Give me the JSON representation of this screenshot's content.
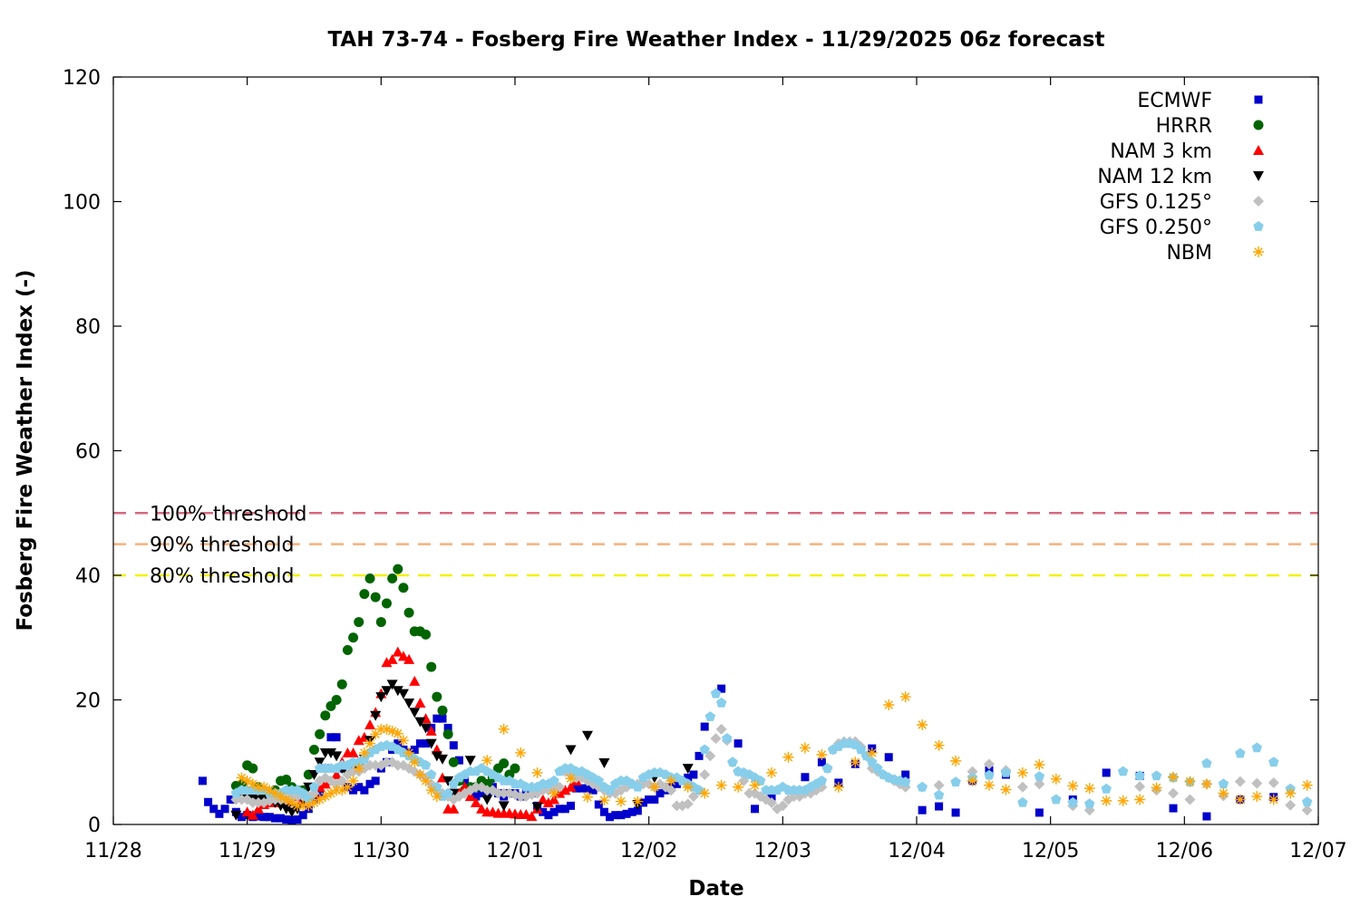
{
  "chart_data": {
    "type": "scatter",
    "title": "TAH 73-74 - Fosberg Fire Weather Index - 11/29/2025 06z forecast",
    "xlabel": "Date",
    "ylabel": "Fosberg Fire Weather Index (-)",
    "x_units": "hours since 11/28 00z",
    "xlim_days": [
      0,
      9
    ],
    "ylim": [
      0,
      120
    ],
    "yticks": [
      0,
      20,
      40,
      60,
      80,
      100,
      120
    ],
    "xtick_labels": [
      "11/28",
      "11/29",
      "11/30",
      "12/01",
      "12/02",
      "12/03",
      "12/04",
      "12/05",
      "12/06",
      "12/07"
    ],
    "grid": false,
    "legend_position": "top-right",
    "thresholds": [
      {
        "label": "100% threshold",
        "value": 50,
        "color": "#d6687f"
      },
      {
        "label": "90% threshold",
        "value": 45,
        "color": "#f5b27c"
      },
      {
        "label": "80% threshold",
        "value": 40,
        "color": "#f2f200"
      }
    ],
    "series": [
      {
        "name": "ECMWF",
        "marker": "square",
        "color": "#0000cc",
        "segments": [
          {
            "start_hour": 16,
            "step_hours": 1,
            "values": [
              7,
              3.6,
              2.5,
              1.7,
              2.5,
              4,
              2,
              1.2,
              1.5,
              1.2,
              1.3,
              1.2,
              1.2,
              1,
              1,
              0.8,
              0.7,
              0.8,
              1.5,
              2.5,
              4,
              5,
              9,
              14,
              14,
              9,
              6,
              5.5,
              6,
              5.5,
              6.5,
              7,
              9,
              10,
              12,
              13,
              12,
              11.5,
              12,
              13,
              13,
              15.5,
              17,
              17,
              15.5,
              12.7
            ]
          },
          {
            "start_hour": 62,
            "step_hours": 1,
            "values": [
              10.3,
              7,
              5.5,
              4.5,
              5,
              5,
              6,
              5,
              4.5,
              5,
              5,
              4.5,
              5.5,
              5,
              3,
              2,
              1.5,
              2,
              2.5,
              2.5,
              3,
              5.8,
              5.8,
              5.8,
              5.5,
              3.2,
              2,
              1.2,
              1.5,
              1.5,
              1.7,
              2,
              2.2,
              3.5,
              4,
              4,
              5,
              5.5,
              6,
              6.5,
              7,
              7.5,
              8,
              11,
              15.7
            ]
          },
          {
            "start_hour": 109,
            "step_hours": 3,
            "values": [
              21.8,
              13,
              2.5,
              4.5,
              null,
              7.6,
              10,
              6.7,
              9.7,
              12.2,
              10.8,
              8,
              2.3,
              2.9,
              1.9,
              7,
              8.7,
              8,
              null,
              1.9,
              null,
              4,
              null,
              8.3,
              null,
              7.8,
              null,
              2.6,
              null,
              1.3,
              null,
              4,
              null,
              4.4
            ]
          }
        ]
      },
      {
        "name": "HRRR",
        "marker": "circle",
        "color": "#006400",
        "segments": [
          {
            "start_hour": 22,
            "step_hours": 1,
            "values": [
              6.2,
              6.5,
              9.5,
              9,
              6,
              5,
              5,
              5.5,
              7,
              7.2,
              6,
              5.5,
              5.5,
              8,
              12,
              14.5,
              17.5,
              19,
              20,
              22.5,
              28,
              30,
              32.5,
              37,
              39.5,
              36.5,
              32.5,
              35.5,
              39.5,
              41,
              38,
              34,
              31,
              31,
              30.5,
              25.3,
              20.5,
              18.3,
              14.5,
              10,
              7,
              5.5,
              6,
              6,
              7,
              6.5,
              7.5,
              9,
              9.8,
              8,
              9
            ]
          }
        ]
      },
      {
        "name": "NAM 3 km",
        "marker": "triangle-up",
        "color": "#ff0000",
        "segments": [
          {
            "start_hour": 24,
            "step_hours": 1,
            "values": [
              2,
              1.5,
              2.5,
              3.2,
              3.5,
              3.5,
              4,
              4,
              4.5,
              4.5,
              4,
              4.5,
              5,
              6,
              6.5,
              7,
              8,
              10,
              11.5,
              11.5,
              13.5,
              14,
              16,
              18,
              21,
              26,
              26.5,
              27.7,
              27,
              26.5,
              23,
              19.5,
              17,
              15,
              12,
              7.5,
              2.5,
              2.5,
              5,
              6,
              4.5,
              3.5,
              2.5,
              2,
              2,
              1.8,
              1.8,
              1.8,
              1.7,
              1.6,
              1.6,
              1.3,
              2.5,
              4,
              3.5,
              4,
              5,
              5.5,
              6,
              7,
              8.5
            ]
          }
        ]
      },
      {
        "name": "NAM 12 km",
        "marker": "triangle-down",
        "color": "#000000",
        "segments": [
          {
            "start_hour": 22,
            "step_hours": 1,
            "values": [
              1.5,
              4.5,
              4.5,
              4.5,
              4,
              4,
              4,
              3.5,
              3,
              2.5,
              2,
              2.5,
              4,
              6,
              8,
              10,
              11.5,
              11.5,
              11,
              9,
              8,
              8.5,
              9,
              10.5,
              13.5,
              17.5,
              20.5,
              21.5,
              22.5,
              21.5,
              21,
              19.5,
              18,
              16.5,
              15.5,
              13,
              11,
              10.5,
              7,
              5
            ]
          },
          {
            "start_hour": 64,
            "step_hours": 3,
            "values": [
              10.3,
              4,
              3,
              null,
              2.8,
              null,
              12,
              14.3,
              9.9,
              null,
              3.2,
              7.5,
              null,
              9
            ]
          }
        ]
      },
      {
        "name": "GFS 0.125°",
        "marker": "diamond",
        "color": "#c0c0c0",
        "segments": [
          {
            "start_hour": 22,
            "step_hours": 1,
            "values": [
              4,
              4,
              4,
              3.5,
              3.5,
              3.5,
              3.8,
              4,
              4,
              4,
              4.5,
              4.5,
              4.5,
              4.5,
              5,
              7,
              7.5,
              7,
              6.5,
              7,
              8,
              8.5,
              8.5,
              9,
              9.5,
              9.5,
              9.5,
              10,
              10,
              9.5,
              9.5,
              9,
              8.5,
              8,
              7.5,
              6.5,
              5.5,
              5,
              4.5,
              4,
              4.5,
              5,
              5.5,
              6,
              6,
              5.5,
              5.5,
              5,
              5,
              5,
              4.8,
              4.5,
              4.5,
              4.8,
              5,
              5.5,
              5.5,
              6,
              6,
              8.5,
              8,
              7.5,
              7.5,
              7,
              6.5,
              6,
              5.5,
              5,
              5,
              5.5,
              6,
              6.5,
              6.5,
              6.5,
              6.5,
              6,
              6.5,
              6,
              5.5,
              3,
              3,
              3.3,
              4.5,
              5.5,
              8,
              11,
              13.8,
              15.3,
              13.5,
              10,
              8.5,
              7,
              5,
              5,
              4.5,
              4,
              3.5,
              2.5,
              3,
              4,
              4.5,
              4.5,
              5,
              5,
              5.5,
              6,
              9,
              12,
              13,
              13.3,
              13.3,
              13.3,
              12.5,
              11,
              9,
              8.5,
              8,
              7.5,
              7,
              6.5,
              6
            ]
          },
          {
            "start_hour": 145,
            "step_hours": 3,
            "values": [
              6,
              6.3,
              null,
              8.5,
              9.7,
              8.7,
              6,
              6.5,
              null,
              3,
              2.3,
              null,
              null,
              6.1,
              5.5,
              5,
              4,
              6.5,
              4.6,
              6.9,
              6.6,
              6.7,
              3.1,
              2.3
            ]
          }
        ]
      },
      {
        "name": "GFS 0.250°",
        "marker": "pentagon",
        "color": "#87ceeb",
        "segments": [
          {
            "start_hour": 22,
            "step_hours": 1,
            "values": [
              5,
              5.5,
              5.5,
              5.5,
              5.5,
              5.5,
              5,
              5,
              5,
              5.5,
              5.5,
              5.5,
              5,
              4,
              6,
              9,
              9,
              9,
              9,
              9.5,
              9.5,
              10,
              10,
              10.5,
              11.5,
              12,
              12.5,
              12.7,
              12.5,
              12,
              11.5,
              11,
              10.5,
              10,
              9.5,
              8,
              6,
              4.5,
              5,
              6.5,
              7.5,
              8,
              8.5,
              8.5,
              9,
              8.5,
              8,
              7.5,
              7,
              7,
              6.5,
              6.5,
              6,
              6,
              6,
              6.5,
              6.5,
              7,
              8.5,
              9,
              9,
              8.5,
              8.5,
              8,
              7.5,
              7,
              6,
              5.5,
              6.5,
              7,
              7,
              6.5,
              6,
              7.5,
              8,
              8.3,
              8.3,
              8,
              7.5,
              7.5,
              7,
              6.5,
              6,
              5.5,
              12,
              17.3,
              21,
              19.5,
              13.8,
              10,
              8.5,
              8.3,
              8,
              7.5,
              7,
              5.5,
              5.5,
              5.5,
              6,
              5.5,
              5.5,
              5.5,
              5.5,
              6,
              6.5,
              7,
              9,
              12,
              12.5,
              13,
              13,
              12.8,
              12,
              11,
              10,
              9,
              8,
              7.5,
              7.2,
              7,
              6.8
            ]
          },
          {
            "start_hour": 145,
            "step_hours": 3,
            "values": [
              6,
              4.7,
              6.8,
              7.5,
              7.9,
              8.3,
              3.5,
              7.7,
              4,
              3.5,
              3.3,
              5.7,
              8.5,
              7.8,
              7.8,
              7.5,
              6.8,
              9.8,
              6.5,
              11.4,
              12.3,
              10,
              5.7,
              3.6
            ]
          }
        ]
      },
      {
        "name": "NBM",
        "marker": "asterisk",
        "color": "#ffa500",
        "segments": [
          {
            "start_hour": 23,
            "step_hours": 1,
            "values": [
              7.5,
              7,
              6.5,
              6,
              6,
              5.5,
              5,
              4.5,
              4,
              3.5,
              3,
              3,
              3,
              3.5,
              4,
              4.5,
              5,
              5.5,
              5.5,
              6,
              7,
              9,
              11.5,
              13,
              14.5,
              15.3,
              15.3,
              15,
              14.6,
              13.5,
              11.5,
              10,
              8,
              7,
              5.5,
              4.5
            ]
          },
          {
            "start_hour": 67,
            "step_hours": 3,
            "values": [
              10.3,
              15.3,
              11.5,
              8.3,
              5,
              7.4,
              4.4,
              3.9,
              3.7,
              3.7,
              6,
              7,
              6,
              5,
              6.3,
              6,
              6.3,
              8.3,
              10.8,
              12.3,
              11.2,
              6,
              10,
              11.5,
              19.2,
              20.5,
              16,
              12.7,
              10.2,
              7,
              6.3,
              5.6,
              8.3,
              9.6,
              7.3,
              6.2,
              5.8,
              3.8,
              3.8,
              4,
              5.9,
              7.6,
              6.9,
              6.5,
              5,
              4,
              4.5,
              4,
              5,
              6.3
            ]
          }
        ]
      }
    ]
  }
}
